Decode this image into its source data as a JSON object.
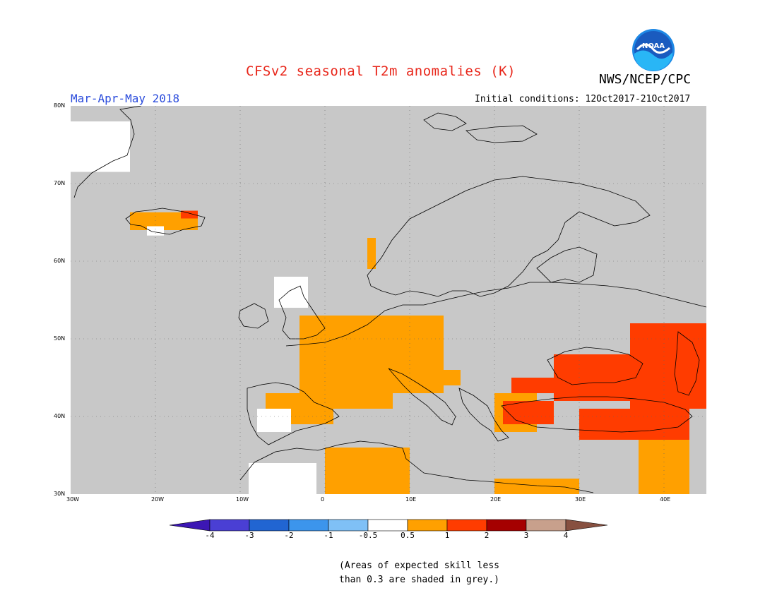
{
  "header": {
    "title": "CFSv2 seasonal T2m anomalies (K)",
    "agency": "NWS/NCEP/CPC",
    "logo_text": "NOAA",
    "season": "Mar-Apr-May 2018",
    "initial_conditions": "Initial conditions: 12Oct2017-21Oct2017"
  },
  "map": {
    "lat_labels": [
      "80N",
      "70N",
      "60N",
      "50N",
      "40N",
      "30N"
    ],
    "lon_labels": [
      "30W",
      "20W",
      "10W",
      "0",
      "10E",
      "20E",
      "30E",
      "40E"
    ],
    "lon_range": [
      -30,
      45
    ],
    "lat_range": [
      30,
      80
    ],
    "background_color": "#c8c8c8",
    "land_anomaly_colors": {
      "white_neutral": "#ffffff",
      "0.5_to_1": "#ffa000",
      "1_to_2": "#ff3c00"
    }
  },
  "colorbar": {
    "labels": [
      "-4",
      "-3",
      "-2",
      "-1",
      "-0.5",
      "0.5",
      "1",
      "2",
      "3",
      "4"
    ],
    "colors": [
      "#3c17b4",
      "#4a3fd4",
      "#2165d2",
      "#3c95ec",
      "#7fc0f6",
      "#ffffff",
      "#ffa000",
      "#ff3c00",
      "#a50000",
      "#c8a08c",
      "#875040"
    ]
  },
  "footnote": {
    "line1": "(Areas of expected skill less",
    "line2": "than 0.3 are shaded in grey.)"
  }
}
